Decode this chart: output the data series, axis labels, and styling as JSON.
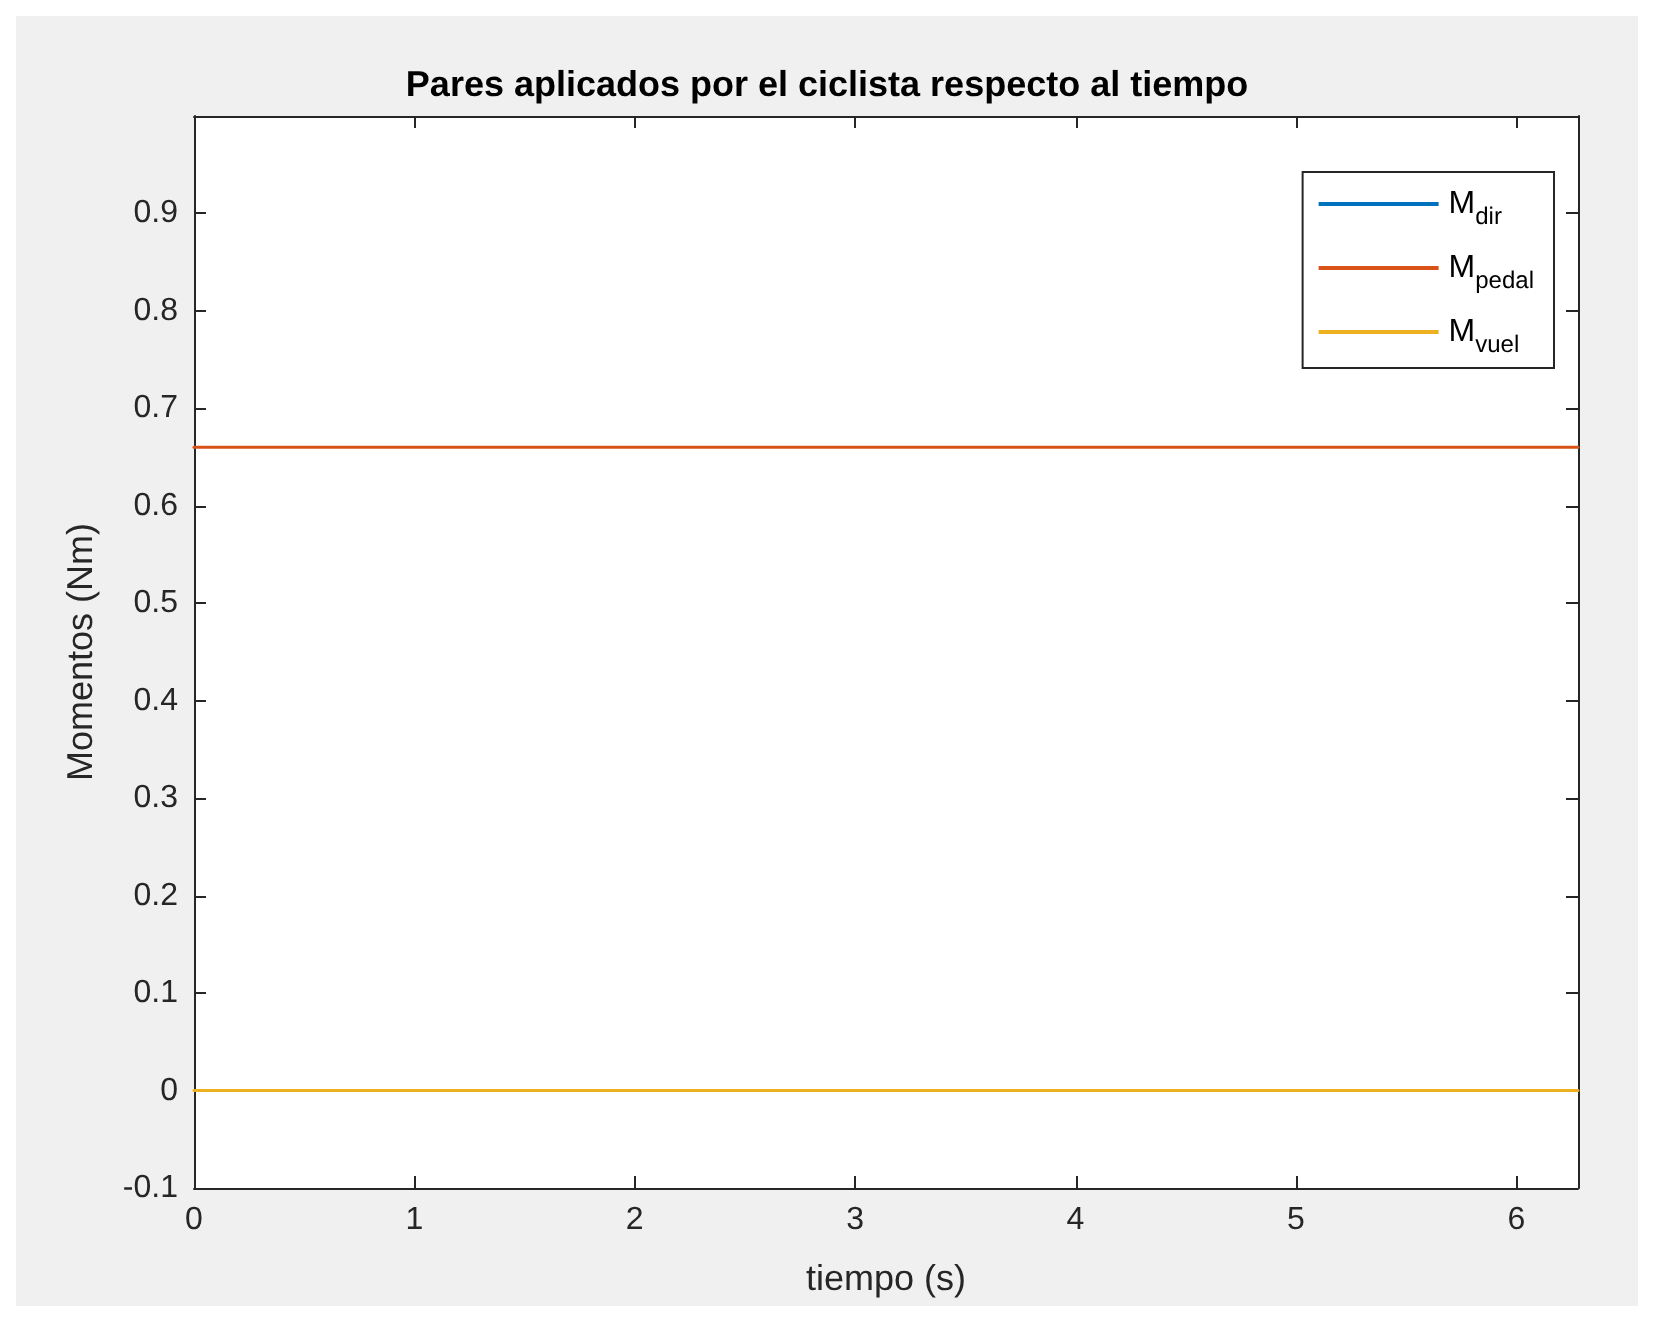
{
  "chart_data": {
    "type": "line",
    "title": "Pares aplicados por el ciclista respecto al tiempo",
    "xlabel": "tiempo (s)",
    "ylabel": "Momentos (Nm)",
    "x": [
      0,
      6.28
    ],
    "series": [
      {
        "name": "M$_{dir}$",
        "color": "#0072bd",
        "values": [
          null,
          null
        ]
      },
      {
        "name": "M$_{pedal}$",
        "color": "#d95319",
        "values": [
          0.66,
          0.66
        ]
      },
      {
        "name": "M$_{vuel}$",
        "color": "#edb120",
        "values": [
          0,
          0
        ]
      }
    ],
    "xlim": [
      0,
      6.28
    ],
    "ylim": [
      -0.1,
      1.0
    ],
    "xticks": [
      0,
      1,
      2,
      3,
      4,
      5,
      6
    ],
    "yticks": [
      -0.1,
      0,
      0.1,
      0.2,
      0.3,
      0.4,
      0.5,
      0.6,
      0.7,
      0.8,
      0.9
    ],
    "grid": false,
    "legend": "top right",
    "marker": "none",
    "line_style": "solid"
  }
}
